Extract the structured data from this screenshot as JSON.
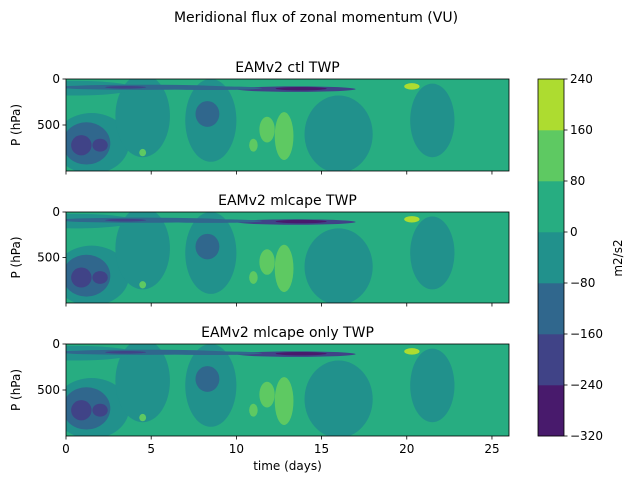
{
  "figure": {
    "suptitle": "Meridional flux of zonal momentum (VU)"
  },
  "chart_data": [
    {
      "type": "heatmap",
      "title": "EAMv2 ctl TWP",
      "xlabel": "",
      "ylabel": "P (hPa)",
      "xlim": [
        0,
        26
      ],
      "ylim": [
        1000,
        0
      ],
      "yticks": [
        0,
        500
      ],
      "xticks": [
        0,
        5,
        10,
        15,
        20,
        25
      ],
      "x_ticklabels_shown": false
    },
    {
      "type": "heatmap",
      "title": "EAMv2 mlcape TWP",
      "xlabel": "",
      "ylabel": "P (hPa)",
      "xlim": [
        0,
        26
      ],
      "ylim": [
        1000,
        0
      ],
      "yticks": [
        0,
        500
      ],
      "xticks": [
        0,
        5,
        10,
        15,
        20,
        25
      ],
      "x_ticklabels_shown": false
    },
    {
      "type": "heatmap",
      "title": "EAMv2 mlcape only TWP",
      "xlabel": "time (days)",
      "ylabel": "P (hPa)",
      "xlim": [
        0,
        26
      ],
      "ylim": [
        1000,
        0
      ],
      "yticks": [
        0,
        500
      ],
      "xticks": [
        0,
        5,
        10,
        15,
        20,
        25
      ],
      "x_ticklabels_shown": true
    }
  ],
  "colorbar": {
    "label": "m2/s2",
    "levels": [
      -320,
      -240,
      -160,
      -80,
      0,
      80,
      160,
      240
    ],
    "colors": [
      "#481a6c",
      "#404387",
      "#30678d",
      "#21918c",
      "#27ad81",
      "#5ec962",
      "#addc30",
      "#e0e325"
    ]
  }
}
